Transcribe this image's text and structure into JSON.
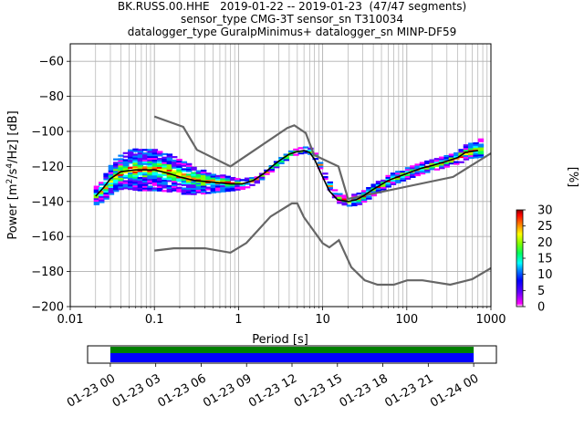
{
  "chart_data": [
    {
      "type": "heatmap",
      "title_lines": [
        "BK.RUSS.00.HHE   2019-01-22 -- 2019-01-23  (47/47 segments)",
        "sensor_type CMG-3T sensor_sn T310034",
        "datalogger_type GuralpMinimus+ datalogger_sn MINP-DF59"
      ],
      "xlabel": "Period [s]",
      "ylabel_parts": {
        "base": "Power [m",
        "sup1": "2",
        "mid": "/s",
        "sup2": "4",
        "end": "/Hz] [dB]"
      },
      "x_scale": "log",
      "xlim": [
        0.01,
        1000
      ],
      "ylim": [
        -200,
        -50
      ],
      "x_ticks": [
        {
          "value": 0.01,
          "label": "0.01"
        },
        {
          "value": 0.1,
          "label": "0.1"
        },
        {
          "value": 1,
          "label": "1"
        },
        {
          "value": 10,
          "label": "10"
        },
        {
          "value": 100,
          "label": "100"
        },
        {
          "value": 1000,
          "label": "1000"
        }
      ],
      "y_ticks": [
        {
          "value": -60,
          "label": "−60"
        },
        {
          "value": -80,
          "label": "−80"
        },
        {
          "value": -100,
          "label": "−100"
        },
        {
          "value": -120,
          "label": "−120"
        },
        {
          "value": -140,
          "label": "−140"
        },
        {
          "value": -160,
          "label": "−160"
        },
        {
          "value": -180,
          "label": "−180"
        },
        {
          "value": -200,
          "label": "−200"
        }
      ],
      "grid": true,
      "colorbar": {
        "label": "[%]",
        "range": [
          0,
          30
        ],
        "ticks": [
          {
            "value": 0,
            "label": "0"
          },
          {
            "value": 5,
            "label": "5"
          },
          {
            "value": 10,
            "label": "10"
          },
          {
            "value": 15,
            "label": "15"
          },
          {
            "value": 20,
            "label": "20"
          },
          {
            "value": 25,
            "label": "25"
          },
          {
            "value": 30,
            "label": "30"
          }
        ],
        "colors": [
          "#ffffff",
          "#ff00ff",
          "#6000ff",
          "#0000ff",
          "#0080ff",
          "#00ffff",
          "#00ff60",
          "#80ff00",
          "#ffff00",
          "#ff8000",
          "#ff0000",
          "#800000"
        ]
      },
      "noise_models": {
        "nhnm": [
          [
            0.1,
            -91.5
          ],
          [
            0.22,
            -97.4
          ],
          [
            0.32,
            -110.5
          ],
          [
            0.8,
            -120
          ],
          [
            3.8,
            -98
          ],
          [
            4.6,
            -96.5
          ],
          [
            6.3,
            -101
          ],
          [
            7.9,
            -113.5
          ],
          [
            15.4,
            -120
          ],
          [
            20,
            -138.5
          ],
          [
            354.8,
            -126
          ],
          [
            1000,
            -112.5
          ]
        ],
        "nlnm": [
          [
            0.1,
            -168
          ],
          [
            0.17,
            -166.7
          ],
          [
            0.4,
            -166.7
          ],
          [
            0.8,
            -169.2
          ],
          [
            1.24,
            -163.7
          ],
          [
            2.4,
            -148.6
          ],
          [
            4.3,
            -141.1
          ],
          [
            5,
            -141.1
          ],
          [
            6,
            -149
          ],
          [
            10,
            -163.8
          ],
          [
            12,
            -166.2
          ],
          [
            15.6,
            -162.1
          ],
          [
            21.9,
            -177.5
          ],
          [
            31.6,
            -185
          ],
          [
            45,
            -187.5
          ],
          [
            70,
            -187.5
          ],
          [
            101,
            -185
          ],
          [
            154,
            -185
          ],
          [
            328,
            -187.5
          ],
          [
            600,
            -184.4
          ],
          [
            1000,
            -178
          ]
        ]
      },
      "median_curve": [
        [
          0.02,
          -137
        ],
        [
          0.025,
          -132
        ],
        [
          0.03,
          -127
        ],
        [
          0.04,
          -123
        ],
        [
          0.06,
          -122
        ],
        [
          0.1,
          -122
        ],
        [
          0.15,
          -124
        ],
        [
          0.2,
          -126
        ],
        [
          0.3,
          -128
        ],
        [
          0.5,
          -129
        ],
        [
          0.8,
          -130
        ],
        [
          1.1,
          -130
        ],
        [
          1.5,
          -128
        ],
        [
          2,
          -124
        ],
        [
          2.5,
          -120
        ],
        [
          3,
          -117
        ],
        [
          4,
          -113
        ],
        [
          5,
          -111.5
        ],
        [
          6,
          -111
        ],
        [
          7,
          -112
        ],
        [
          8,
          -116
        ],
        [
          10,
          -126
        ],
        [
          12,
          -134
        ],
        [
          15,
          -139
        ],
        [
          20,
          -140
        ],
        [
          25,
          -139
        ],
        [
          30,
          -137
        ],
        [
          40,
          -133
        ],
        [
          60,
          -128
        ],
        [
          100,
          -124
        ],
        [
          150,
          -121
        ],
        [
          200,
          -119.5
        ],
        [
          300,
          -117
        ],
        [
          400,
          -115
        ],
        [
          500,
          -112
        ],
        [
          700,
          -111
        ]
      ],
      "median_color": "#000000",
      "noise_model_color": "#666666",
      "curve_upper_spread": [
        [
          0.02,
          5
        ],
        [
          0.03,
          10
        ],
        [
          0.06,
          12
        ],
        [
          0.1,
          11
        ],
        [
          0.2,
          9
        ],
        [
          0.4,
          5
        ],
        [
          0.8,
          3
        ],
        [
          1.5,
          2
        ],
        [
          3,
          1.5
        ],
        [
          6,
          1.5
        ],
        [
          10,
          2
        ],
        [
          20,
          3
        ],
        [
          50,
          3
        ],
        [
          100,
          3
        ],
        [
          300,
          3
        ],
        [
          700,
          6
        ]
      ],
      "curve_lower_spread": [
        [
          0.02,
          5
        ],
        [
          0.03,
          8
        ],
        [
          0.06,
          12
        ],
        [
          0.1,
          12
        ],
        [
          0.2,
          10
        ],
        [
          0.4,
          7
        ],
        [
          0.8,
          4
        ],
        [
          1.5,
          2
        ],
        [
          3,
          1.5
        ],
        [
          6,
          1.5
        ],
        [
          10,
          2
        ],
        [
          20,
          3
        ],
        [
          50,
          3
        ],
        [
          100,
          3
        ],
        [
          300,
          3
        ],
        [
          700,
          4
        ]
      ]
    },
    {
      "type": "timeline",
      "x_ticks": [
        {
          "label": "01-23 00",
          "hours": 0
        },
        {
          "label": "01-23 03",
          "hours": 3
        },
        {
          "label": "01-23 06",
          "hours": 6
        },
        {
          "label": "01-23 09",
          "hours": 9
        },
        {
          "label": "01-23 12",
          "hours": 12
        },
        {
          "label": "01-23 15",
          "hours": 15
        },
        {
          "label": "01-23 18",
          "hours": 18
        },
        {
          "label": "01-23 21",
          "hours": 21
        },
        {
          "label": "01-24 00",
          "hours": 24
        }
      ],
      "xlim_hours": [
        -1.5,
        25.5
      ],
      "coverage_hours": [
        0,
        24
      ],
      "processed_hours": [
        0,
        24
      ],
      "coverage_colors": {
        "data": "#008000",
        "processed": "#0000ff"
      }
    }
  ]
}
